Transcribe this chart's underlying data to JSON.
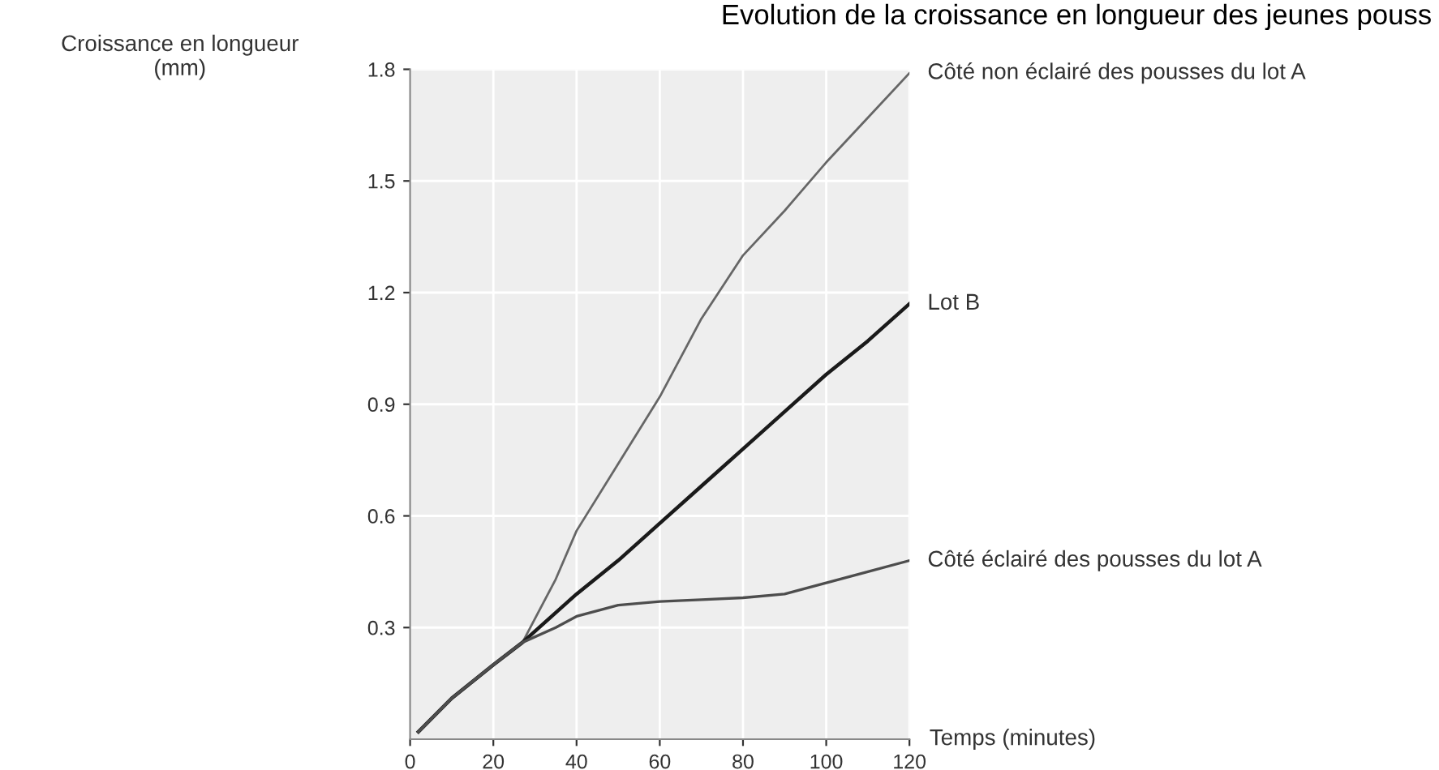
{
  "chart_data": {
    "type": "line",
    "title": "Evolution de la croissance en longueur des jeunes pouss",
    "xlabel": "Temps (minutes)",
    "ylabel": "Croissance en longueur\n(mm)",
    "x": [
      2,
      10,
      20,
      27,
      35,
      40,
      50,
      60,
      70,
      80,
      90,
      100,
      110,
      120
    ],
    "series": [
      {
        "name": "Côté non éclairé des pousses du lot A",
        "color": "#666666",
        "values": [
          0.02,
          0.11,
          0.2,
          0.26,
          0.43,
          0.56,
          0.74,
          0.92,
          1.13,
          1.3,
          1.42,
          1.55,
          1.67,
          1.79
        ]
      },
      {
        "name": "Lot B",
        "color": "#1a1a1a",
        "values": [
          0.02,
          0.11,
          0.2,
          0.26,
          0.34,
          0.39,
          0.48,
          0.58,
          0.68,
          0.78,
          0.88,
          0.98,
          1.07,
          1.17
        ]
      },
      {
        "name": "Côté éclairé des pousses du lot A",
        "color": "#4d4d4d",
        "values": [
          0.02,
          0.11,
          0.2,
          0.26,
          0.3,
          0.33,
          0.36,
          0.37,
          0.375,
          0.38,
          0.39,
          0.42,
          0.45,
          0.48
        ]
      }
    ],
    "xlim": [
      0,
      120
    ],
    "ylim": [
      0,
      1.8
    ],
    "xticks": [
      0,
      20,
      40,
      60,
      80,
      100,
      120
    ],
    "yticks": [
      0.3,
      0.6,
      0.9,
      1.2,
      1.5,
      1.8
    ],
    "grid": true,
    "legend": false,
    "marker": "none",
    "line_style": "solid"
  }
}
